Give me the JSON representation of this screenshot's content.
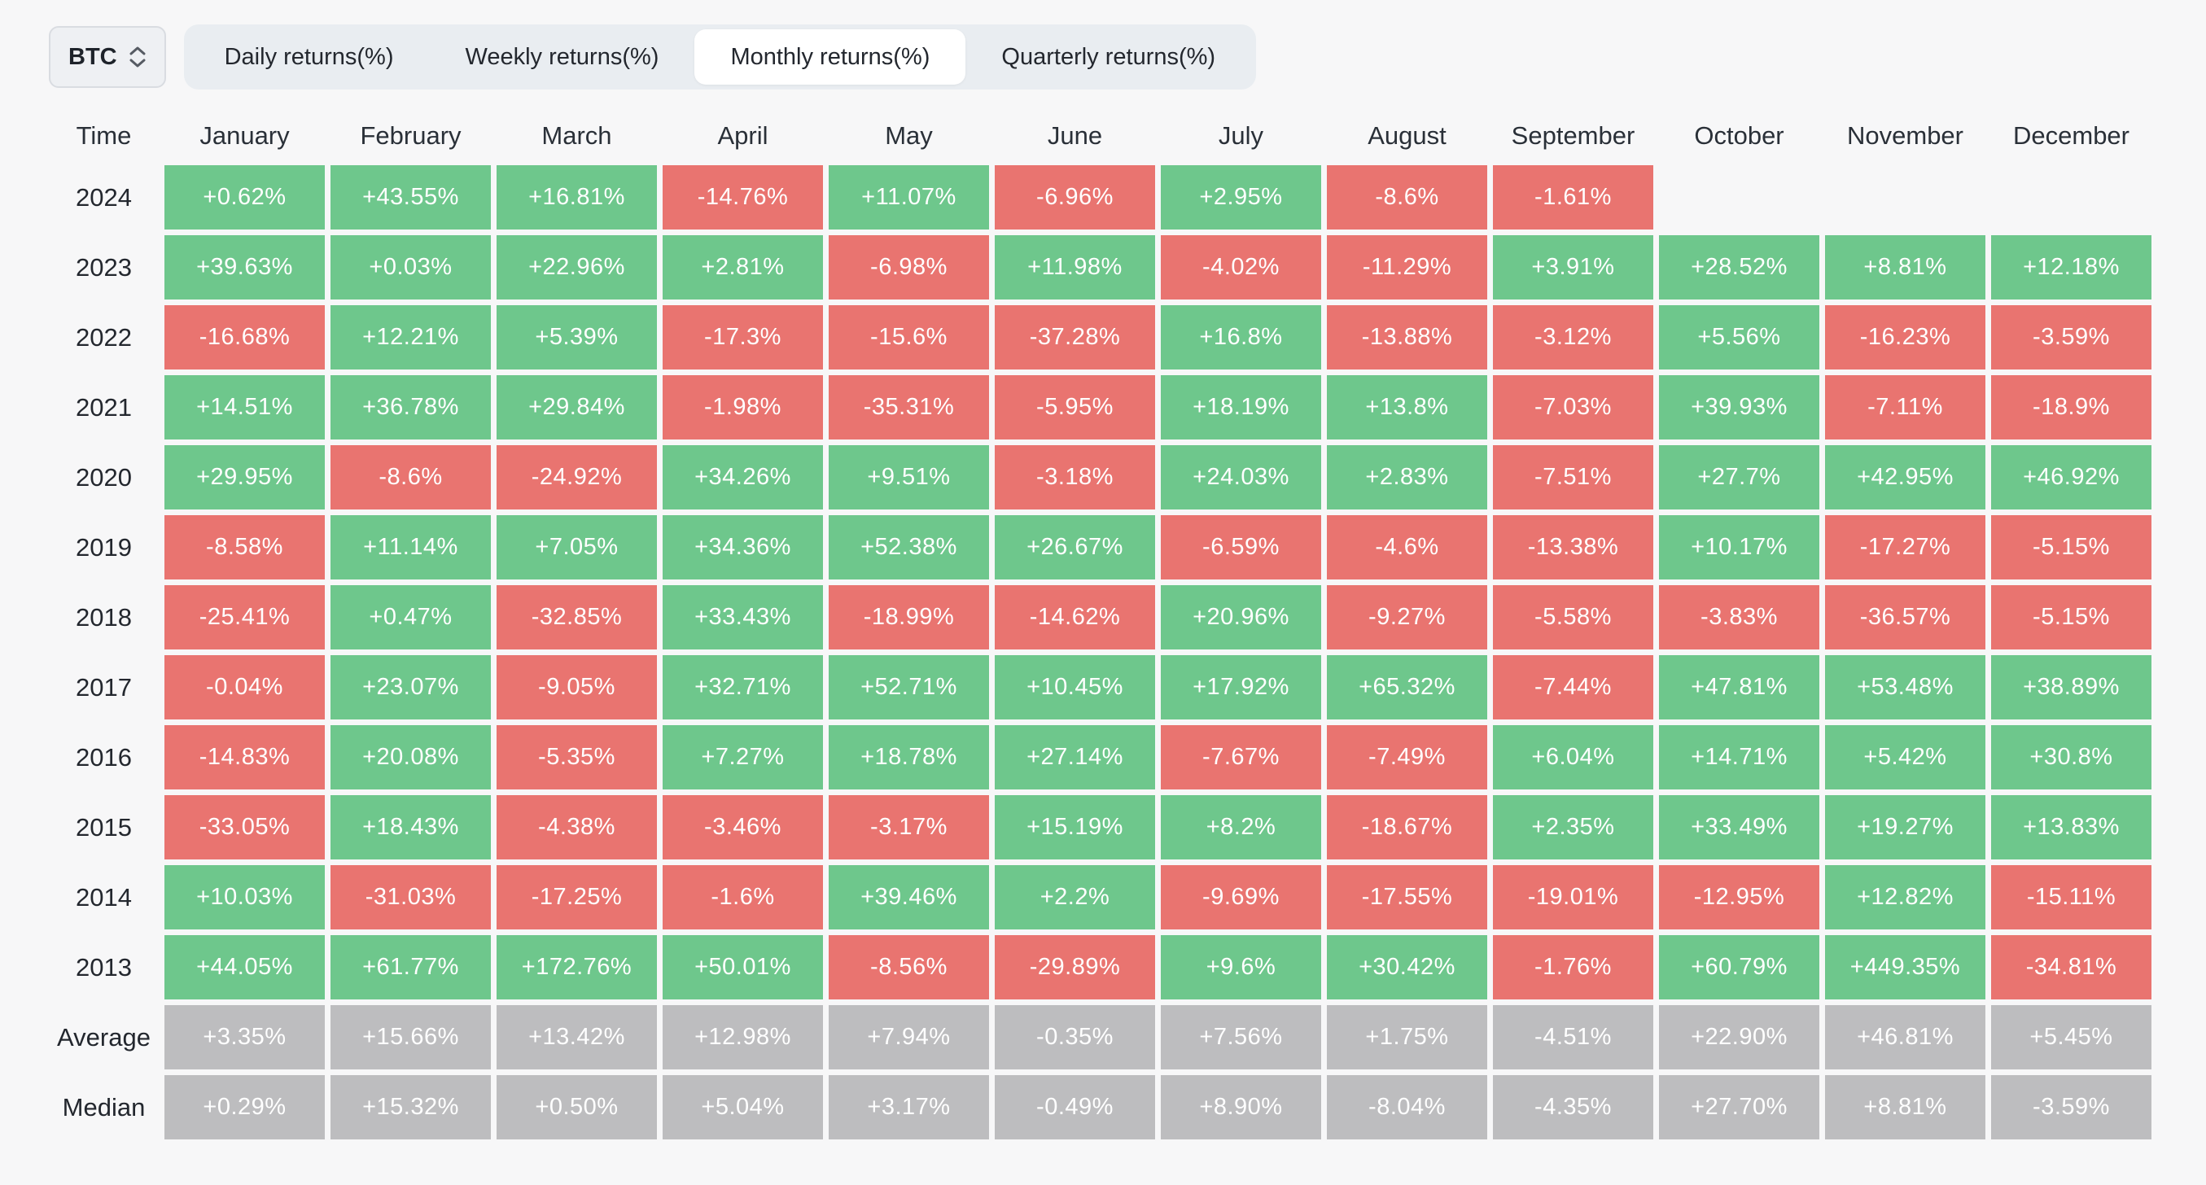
{
  "controls": {
    "symbol_select": {
      "value": "BTC"
    },
    "tabs": [
      {
        "label": "Daily returns(%)",
        "active": false
      },
      {
        "label": "Weekly returns(%)",
        "active": false
      },
      {
        "label": "Monthly returns(%)",
        "active": true
      },
      {
        "label": "Quarterly returns(%)",
        "active": false
      }
    ]
  },
  "colors": {
    "positive_cell": "#6ec78c",
    "negative_cell": "#e97470",
    "summary_cell": "#bdbdbf",
    "page_background": "#f7f7f8",
    "tabbar_background": "#e9edf1",
    "active_tab_background": "#ffffff"
  },
  "table": {
    "time_header": "Time",
    "month_headers": [
      "January",
      "February",
      "March",
      "April",
      "May",
      "June",
      "July",
      "August",
      "September",
      "October",
      "November",
      "December"
    ],
    "rows": [
      {
        "label": "2024",
        "type": "year",
        "values": [
          "+0.62%",
          "+43.55%",
          "+16.81%",
          "-14.76%",
          "+11.07%",
          "-6.96%",
          "+2.95%",
          "-8.6%",
          "-1.61%",
          null,
          null,
          null
        ]
      },
      {
        "label": "2023",
        "type": "year",
        "values": [
          "+39.63%",
          "+0.03%",
          "+22.96%",
          "+2.81%",
          "-6.98%",
          "+11.98%",
          "-4.02%",
          "-11.29%",
          "+3.91%",
          "+28.52%",
          "+8.81%",
          "+12.18%"
        ]
      },
      {
        "label": "2022",
        "type": "year",
        "values": [
          "-16.68%",
          "+12.21%",
          "+5.39%",
          "-17.3%",
          "-15.6%",
          "-37.28%",
          "+16.8%",
          "-13.88%",
          "-3.12%",
          "+5.56%",
          "-16.23%",
          "-3.59%"
        ]
      },
      {
        "label": "2021",
        "type": "year",
        "values": [
          "+14.51%",
          "+36.78%",
          "+29.84%",
          "-1.98%",
          "-35.31%",
          "-5.95%",
          "+18.19%",
          "+13.8%",
          "-7.03%",
          "+39.93%",
          "-7.11%",
          "-18.9%"
        ]
      },
      {
        "label": "2020",
        "type": "year",
        "values": [
          "+29.95%",
          "-8.6%",
          "-24.92%",
          "+34.26%",
          "+9.51%",
          "-3.18%",
          "+24.03%",
          "+2.83%",
          "-7.51%",
          "+27.7%",
          "+42.95%",
          "+46.92%"
        ]
      },
      {
        "label": "2019",
        "type": "year",
        "values": [
          "-8.58%",
          "+11.14%",
          "+7.05%",
          "+34.36%",
          "+52.38%",
          "+26.67%",
          "-6.59%",
          "-4.6%",
          "-13.38%",
          "+10.17%",
          "-17.27%",
          "-5.15%"
        ]
      },
      {
        "label": "2018",
        "type": "year",
        "values": [
          "-25.41%",
          "+0.47%",
          "-32.85%",
          "+33.43%",
          "-18.99%",
          "-14.62%",
          "+20.96%",
          "-9.27%",
          "-5.58%",
          "-3.83%",
          "-36.57%",
          "-5.15%"
        ]
      },
      {
        "label": "2017",
        "type": "year",
        "values": [
          "-0.04%",
          "+23.07%",
          "-9.05%",
          "+32.71%",
          "+52.71%",
          "+10.45%",
          "+17.92%",
          "+65.32%",
          "-7.44%",
          "+47.81%",
          "+53.48%",
          "+38.89%"
        ]
      },
      {
        "label": "2016",
        "type": "year",
        "values": [
          "-14.83%",
          "+20.08%",
          "-5.35%",
          "+7.27%",
          "+18.78%",
          "+27.14%",
          "-7.67%",
          "-7.49%",
          "+6.04%",
          "+14.71%",
          "+5.42%",
          "+30.8%"
        ]
      },
      {
        "label": "2015",
        "type": "year",
        "values": [
          "-33.05%",
          "+18.43%",
          "-4.38%",
          "-3.46%",
          "-3.17%",
          "+15.19%",
          "+8.2%",
          "-18.67%",
          "+2.35%",
          "+33.49%",
          "+19.27%",
          "+13.83%"
        ]
      },
      {
        "label": "2014",
        "type": "year",
        "values": [
          "+10.03%",
          "-31.03%",
          "-17.25%",
          "-1.6%",
          "+39.46%",
          "+2.2%",
          "-9.69%",
          "-17.55%",
          "-19.01%",
          "-12.95%",
          "+12.82%",
          "-15.11%"
        ]
      },
      {
        "label": "2013",
        "type": "year",
        "values": [
          "+44.05%",
          "+61.77%",
          "+172.76%",
          "+50.01%",
          "-8.56%",
          "-29.89%",
          "+9.6%",
          "+30.42%",
          "-1.76%",
          "+60.79%",
          "+449.35%",
          "-34.81%"
        ]
      },
      {
        "label": "Average",
        "type": "summary",
        "values": [
          "+3.35%",
          "+15.66%",
          "+13.42%",
          "+12.98%",
          "+7.94%",
          "-0.35%",
          "+7.56%",
          "+1.75%",
          "-4.51%",
          "+22.90%",
          "+46.81%",
          "+5.45%"
        ]
      },
      {
        "label": "Median",
        "type": "summary",
        "values": [
          "+0.29%",
          "+15.32%",
          "+0.50%",
          "+5.04%",
          "+3.17%",
          "-0.49%",
          "+8.90%",
          "-8.04%",
          "-4.35%",
          "+27.70%",
          "+8.81%",
          "-3.59%"
        ]
      }
    ]
  }
}
